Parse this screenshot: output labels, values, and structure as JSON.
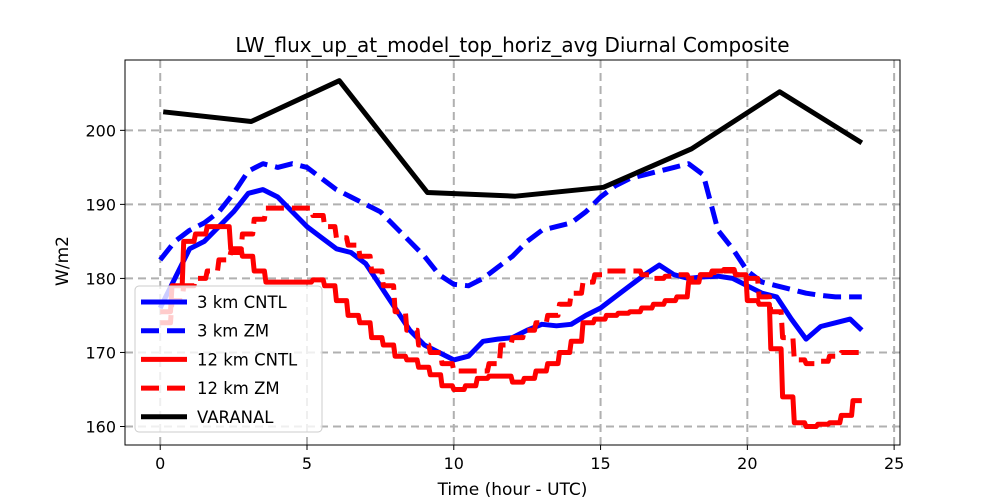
{
  "chart_data": {
    "type": "line",
    "title": "LW_flux_up_at_model_top_horiz_avg Diurnal Composite",
    "xlabel": "Time (hour - UTC)",
    "ylabel": "W/m2",
    "xlim": [
      -1.2,
      25.2
    ],
    "ylim": [
      157.5,
      209.5
    ],
    "xticks": [
      0,
      5,
      10,
      15,
      20,
      25
    ],
    "yticks": [
      160,
      170,
      180,
      190,
      200
    ],
    "grid": true,
    "legend_position": "lower-left",
    "series": [
      {
        "name": "3 km CNTL",
        "color": "#0000ff",
        "style": "solid",
        "x": [
          0,
          0.5,
          1,
          1.5,
          2,
          2.5,
          3,
          3.5,
          4,
          4.5,
          5,
          5.5,
          6,
          6.5,
          7,
          7.5,
          8,
          8.5,
          9,
          9.5,
          10,
          10.5,
          11,
          11.5,
          12,
          12.5,
          13,
          13.5,
          14,
          14.5,
          15,
          15.5,
          16,
          16.5,
          17,
          17.5,
          18,
          18.5,
          19,
          19.5,
          20,
          20.5,
          21,
          21.5,
          22,
          22.5,
          23,
          23.5,
          23.9
        ],
        "y": [
          176,
          180,
          184,
          185,
          187,
          189,
          191.5,
          192,
          191,
          189,
          187,
          185.5,
          184,
          183.5,
          182,
          179,
          176,
          173,
          171,
          170,
          169,
          169.5,
          171.5,
          171.8,
          172,
          173,
          173.8,
          173.6,
          173.8,
          175,
          176,
          177.5,
          179,
          180.5,
          181.8,
          180.5,
          180,
          180.2,
          180.3,
          180,
          179,
          178,
          177.5,
          174.5,
          171.8,
          173.5,
          174,
          174.5,
          173
        ]
      },
      {
        "name": "3 km ZM",
        "color": "#0000ff",
        "style": "dashed",
        "x": [
          0,
          0.5,
          1,
          1.5,
          2,
          2.5,
          3,
          3.5,
          4,
          4.5,
          5,
          5.5,
          6,
          6.5,
          7,
          7.5,
          8,
          8.5,
          9,
          9.5,
          10,
          10.5,
          11,
          11.5,
          12,
          12.5,
          13,
          13.5,
          14,
          14.5,
          15,
          15.5,
          16,
          16.5,
          17,
          17.5,
          18,
          18.5,
          19,
          19.5,
          20,
          20.5,
          21,
          21.5,
          22,
          22.5,
          23,
          23.5,
          23.9
        ],
        "y": [
          182.5,
          185,
          186.5,
          187.5,
          189,
          191.5,
          194.5,
          195.5,
          195,
          195.5,
          195,
          193.5,
          192,
          191,
          190,
          189,
          187,
          185,
          183,
          180.5,
          179.2,
          179,
          180,
          181.5,
          183,
          185,
          186.5,
          187,
          187.5,
          189,
          191,
          192.5,
          193.5,
          194,
          194.5,
          195,
          195.5,
          194,
          186.5,
          184,
          181,
          179.5,
          179,
          178.5,
          178,
          177.7,
          177.5,
          177.5,
          177.5
        ]
      },
      {
        "name": "12 km CNTL",
        "color": "#ff0000",
        "style": "solid",
        "x": [
          0,
          0.35,
          0.4,
          0.75,
          0.8,
          1.15,
          1.2,
          1.55,
          1.6,
          1.95,
          2,
          2.35,
          2.4,
          2.75,
          2.8,
          3.15,
          3.2,
          3.55,
          3.6,
          4.35,
          4.4,
          5.15,
          5.2,
          5.55,
          5.6,
          5.95,
          6,
          6.35,
          6.4,
          6.75,
          6.8,
          7.15,
          7.2,
          7.55,
          7.6,
          7.95,
          8,
          8.35,
          8.4,
          8.75,
          8.8,
          9.15,
          9.2,
          9.55,
          9.6,
          9.95,
          10,
          10.35,
          10.4,
          10.75,
          10.8,
          11.15,
          11.2,
          11.55,
          11.6,
          11.95,
          12,
          12.35,
          12.4,
          12.75,
          12.8,
          13.15,
          13.2,
          13.55,
          13.6,
          13.95,
          14,
          14.35,
          14.4,
          14.75,
          14.8,
          15.15,
          15.2,
          15.55,
          15.6,
          15.95,
          16,
          16.35,
          16.4,
          16.75,
          16.8,
          17.15,
          17.2,
          17.55,
          17.6,
          17.95,
          18,
          18.35,
          18.4,
          18.75,
          18.8,
          19.15,
          19.2,
          19.55,
          19.6,
          19.95,
          20,
          20.35,
          20.4,
          20.75,
          20.8,
          21.15,
          21.2,
          21.55,
          21.6,
          21.95,
          22,
          22.35,
          22.4,
          22.75,
          22.8,
          23.15,
          23.2,
          23.55,
          23.6,
          23.9
        ],
        "y": [
          175.5,
          175.5,
          179,
          179,
          185,
          185,
          186,
          186,
          187,
          187,
          187,
          187,
          184,
          184,
          183,
          183,
          181,
          181,
          179.5,
          179.5,
          179.5,
          179.5,
          179.8,
          179.8,
          179,
          179,
          177,
          177,
          175,
          175,
          174,
          174,
          172,
          172,
          171,
          171,
          169.5,
          169.5,
          169,
          169,
          168,
          168,
          167,
          167,
          165.5,
          165.5,
          165,
          165,
          165.5,
          165.5,
          166.5,
          166.5,
          166.8,
          166.8,
          166.8,
          166.8,
          166,
          166,
          166.5,
          166.5,
          167.5,
          167.5,
          168.5,
          168.5,
          170,
          170,
          171.5,
          171.5,
          174,
          174,
          174.5,
          174.5,
          175,
          175,
          175.3,
          175.3,
          175.5,
          175.5,
          176,
          176,
          176.5,
          176.5,
          177,
          177,
          177.5,
          177.5,
          179.5,
          179.5,
          180.5,
          180.5,
          181,
          181,
          181.2,
          181.2,
          180.5,
          180.5,
          177,
          177,
          176.5,
          176.5,
          170.5,
          170.5,
          164,
          164,
          160.5,
          160.5,
          160,
          160,
          160.3,
          160.3,
          160.5,
          160.5,
          161.5,
          161.5,
          163.5,
          163.5
        ]
      },
      {
        "name": "12 km ZM",
        "color": "#ff0000",
        "style": "dashed",
        "x": [
          0,
          0.35,
          0.4,
          0.75,
          0.8,
          1.15,
          1.2,
          1.55,
          1.6,
          1.95,
          2,
          2.35,
          2.4,
          2.75,
          2.8,
          3.15,
          3.2,
          3.55,
          3.6,
          4.35,
          4.4,
          5.15,
          5.2,
          5.55,
          5.6,
          5.95,
          6,
          6.35,
          6.4,
          6.75,
          6.8,
          7.15,
          7.2,
          7.55,
          7.6,
          7.95,
          8,
          8.35,
          8.4,
          8.75,
          8.8,
          9.15,
          9.2,
          9.55,
          9.6,
          9.95,
          10,
          10.35,
          10.4,
          10.75,
          10.8,
          11.15,
          11.2,
          11.55,
          11.6,
          11.95,
          12,
          12.35,
          12.4,
          12.75,
          12.8,
          13.15,
          13.2,
          13.55,
          13.6,
          13.95,
          14,
          14.35,
          14.4,
          14.75,
          14.8,
          15.15,
          15.2,
          15.55,
          15.6,
          15.95,
          16,
          16.35,
          16.4,
          16.75,
          16.8,
          17.15,
          17.2,
          17.55,
          17.6,
          17.95,
          18,
          18.35,
          18.4,
          18.75,
          18.8,
          19.15,
          19.2,
          19.55,
          19.6,
          19.95,
          20,
          20.35,
          20.4,
          20.75,
          20.8,
          21.15,
          21.2,
          21.55,
          21.6,
          21.95,
          22,
          22.35,
          22.4,
          22.75,
          22.8,
          23.15,
          23.2,
          23.55,
          23.6,
          23.9
        ],
        "y": [
          174,
          174,
          177,
          177,
          179,
          179,
          180,
          180,
          181,
          181,
          182.5,
          182.5,
          183.5,
          183.5,
          186,
          186,
          188,
          188,
          189.5,
          189.5,
          189.5,
          189.5,
          188.5,
          188.5,
          187,
          187,
          185.5,
          185.5,
          184.5,
          184.5,
          183,
          183,
          181,
          181,
          179,
          179,
          175.5,
          175.5,
          173,
          173,
          171,
          171,
          170,
          170,
          168.5,
          168.5,
          167.5,
          167.5,
          167.5,
          167.5,
          167.5,
          167.5,
          168.5,
          168.5,
          171,
          171,
          172,
          172,
          173,
          173,
          174,
          174,
          175,
          175,
          176.5,
          176.5,
          178,
          178,
          179.5,
          179.5,
          180.5,
          180.5,
          181,
          181,
          181,
          181,
          181,
          181,
          180.5,
          180.5,
          180,
          180,
          180.3,
          180.3,
          180.5,
          180.5,
          180,
          180,
          180.5,
          180.5,
          180.8,
          180.8,
          181,
          181,
          180.5,
          180.5,
          180,
          180,
          177.5,
          177.5,
          175.5,
          175.5,
          172,
          172,
          169,
          169,
          168.5,
          168.5,
          168.8,
          168.8,
          169.5,
          169.5,
          170,
          170,
          170,
          170
        ]
      },
      {
        "name": "VARANAL",
        "color": "#000000",
        "style": "solid",
        "x": [
          0.1,
          3.1,
          6.1,
          9.1,
          12.1,
          15.1,
          18.1,
          21.1,
          23.9
        ],
        "y": [
          202.5,
          201.2,
          206.7,
          191.6,
          191.1,
          192.3,
          197.5,
          205.2,
          198.3
        ]
      }
    ]
  }
}
